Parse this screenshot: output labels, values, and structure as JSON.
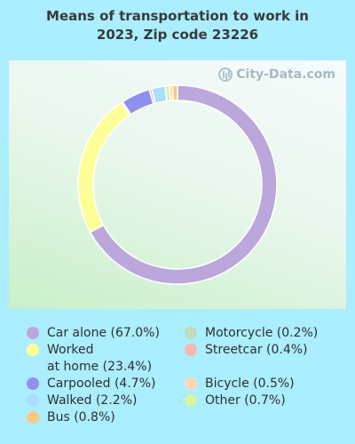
{
  "title_line1": "Means of transportation to work in",
  "title_line2": "2023, Zip code 23226",
  "watermark": "City-Data.com",
  "colors": {
    "car_alone": "#bba7db",
    "worked_at_home": "#ffff99",
    "carpooled": "#9090ee",
    "walked": "#aaddff",
    "bus": "#ffc880",
    "motorcycle": "#c0dcb8",
    "streetcar": "#f4b8b0",
    "bicycle": "#ffd8b0",
    "other": "#d8f5a0"
  },
  "chart_data": {
    "type": "pie",
    "style": "donut",
    "title": "Means of transportation to work in 2023, Zip code 23226",
    "legend_position": "bottom",
    "slices": [
      {
        "key": "car_alone",
        "label": "Car alone (67.0%)",
        "value": 67.0
      },
      {
        "key": "worked_at_home",
        "label": "Worked\nat home (23.4%)",
        "value": 23.4
      },
      {
        "key": "motorcycle",
        "label": "Motorcycle (0.2%)",
        "value": 0.2
      },
      {
        "key": "carpooled",
        "label": "Carpooled (4.7%)",
        "value": 4.7
      },
      {
        "key": "streetcar",
        "label": "Streetcar (0.4%)",
        "value": 0.4
      },
      {
        "key": "walked",
        "label": "Walked (2.2%)",
        "value": 2.2
      },
      {
        "key": "other",
        "label": "Other (0.7%)",
        "value": 0.7
      },
      {
        "key": "bicycle",
        "label": "Bicycle (0.5%)",
        "value": 0.5
      },
      {
        "key": "bus",
        "label": "Bus (0.8%)",
        "value": 0.8
      }
    ],
    "legend_order": [
      "car_alone",
      "motorcycle",
      "worked_at_home",
      "streetcar",
      "carpooled",
      "bicycle",
      "walked",
      "other",
      "bus"
    ]
  }
}
